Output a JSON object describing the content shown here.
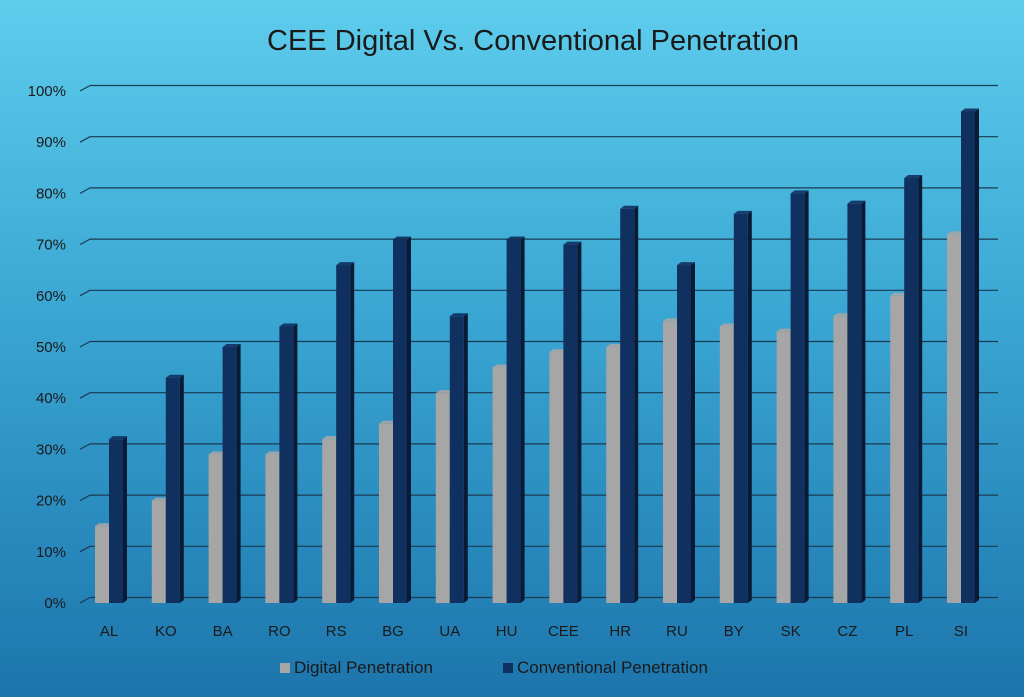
{
  "chart_data": {
    "type": "bar",
    "title": "CEE Digital Vs. Conventional Penetration",
    "categories": [
      "AL",
      "KO",
      "BA",
      "RO",
      "RS",
      "BG",
      "UA",
      "HU",
      "CEE",
      "HR",
      "RU",
      "BY",
      "SK",
      "CZ",
      "PL",
      "SI"
    ],
    "series": [
      {
        "name": "Digital Penetration",
        "values": [
          15,
          20,
          29,
          29,
          32,
          35,
          41,
          46,
          49,
          50,
          55,
          54,
          53,
          56,
          60,
          72
        ],
        "color": "#a6a6a6"
      },
      {
        "name": "Conventional Penetration",
        "values": [
          32,
          44,
          50,
          54,
          66,
          71,
          56,
          71,
          70,
          77,
          66,
          76,
          80,
          78,
          83,
          96
        ],
        "color": "#10305f"
      }
    ],
    "ylim": [
      0,
      100
    ],
    "yticks": [
      "0%",
      "10%",
      "20%",
      "30%",
      "40%",
      "50%",
      "60%",
      "70%",
      "80%",
      "90%",
      "100%"
    ],
    "grid": true,
    "legend_position": "bottom"
  }
}
